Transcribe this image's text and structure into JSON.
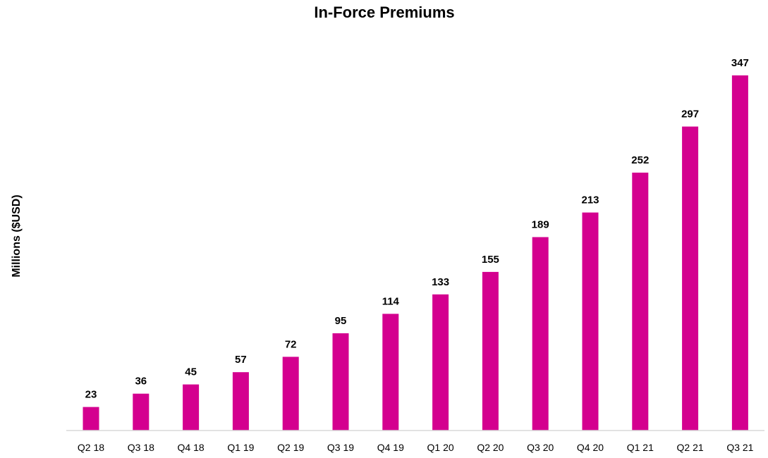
{
  "chart_data": {
    "type": "bar",
    "title": "In-Force Premiums",
    "xlabel": "",
    "ylabel": "Millions ($USD)",
    "categories": [
      "Q2 18",
      "Q3 18",
      "Q4 18",
      "Q1 19",
      "Q2 19",
      "Q3 19",
      "Q4 19",
      "Q1 20",
      "Q2 20",
      "Q3 20",
      "Q4 20",
      "Q1 21",
      "Q2 21",
      "Q3 21"
    ],
    "values": [
      23,
      36,
      45,
      57,
      72,
      95,
      114,
      133,
      155,
      189,
      213,
      252,
      297,
      347
    ],
    "data_labels": [
      "23",
      "36",
      "45",
      "57",
      "72",
      "95",
      "114",
      "133",
      "155",
      "189",
      "213",
      "252",
      "297",
      "347"
    ],
    "ylim": [
      0,
      347
    ],
    "grid": false,
    "legend": "none",
    "bar_color": "#D4008F",
    "axis_color": "#D9D9D9"
  }
}
